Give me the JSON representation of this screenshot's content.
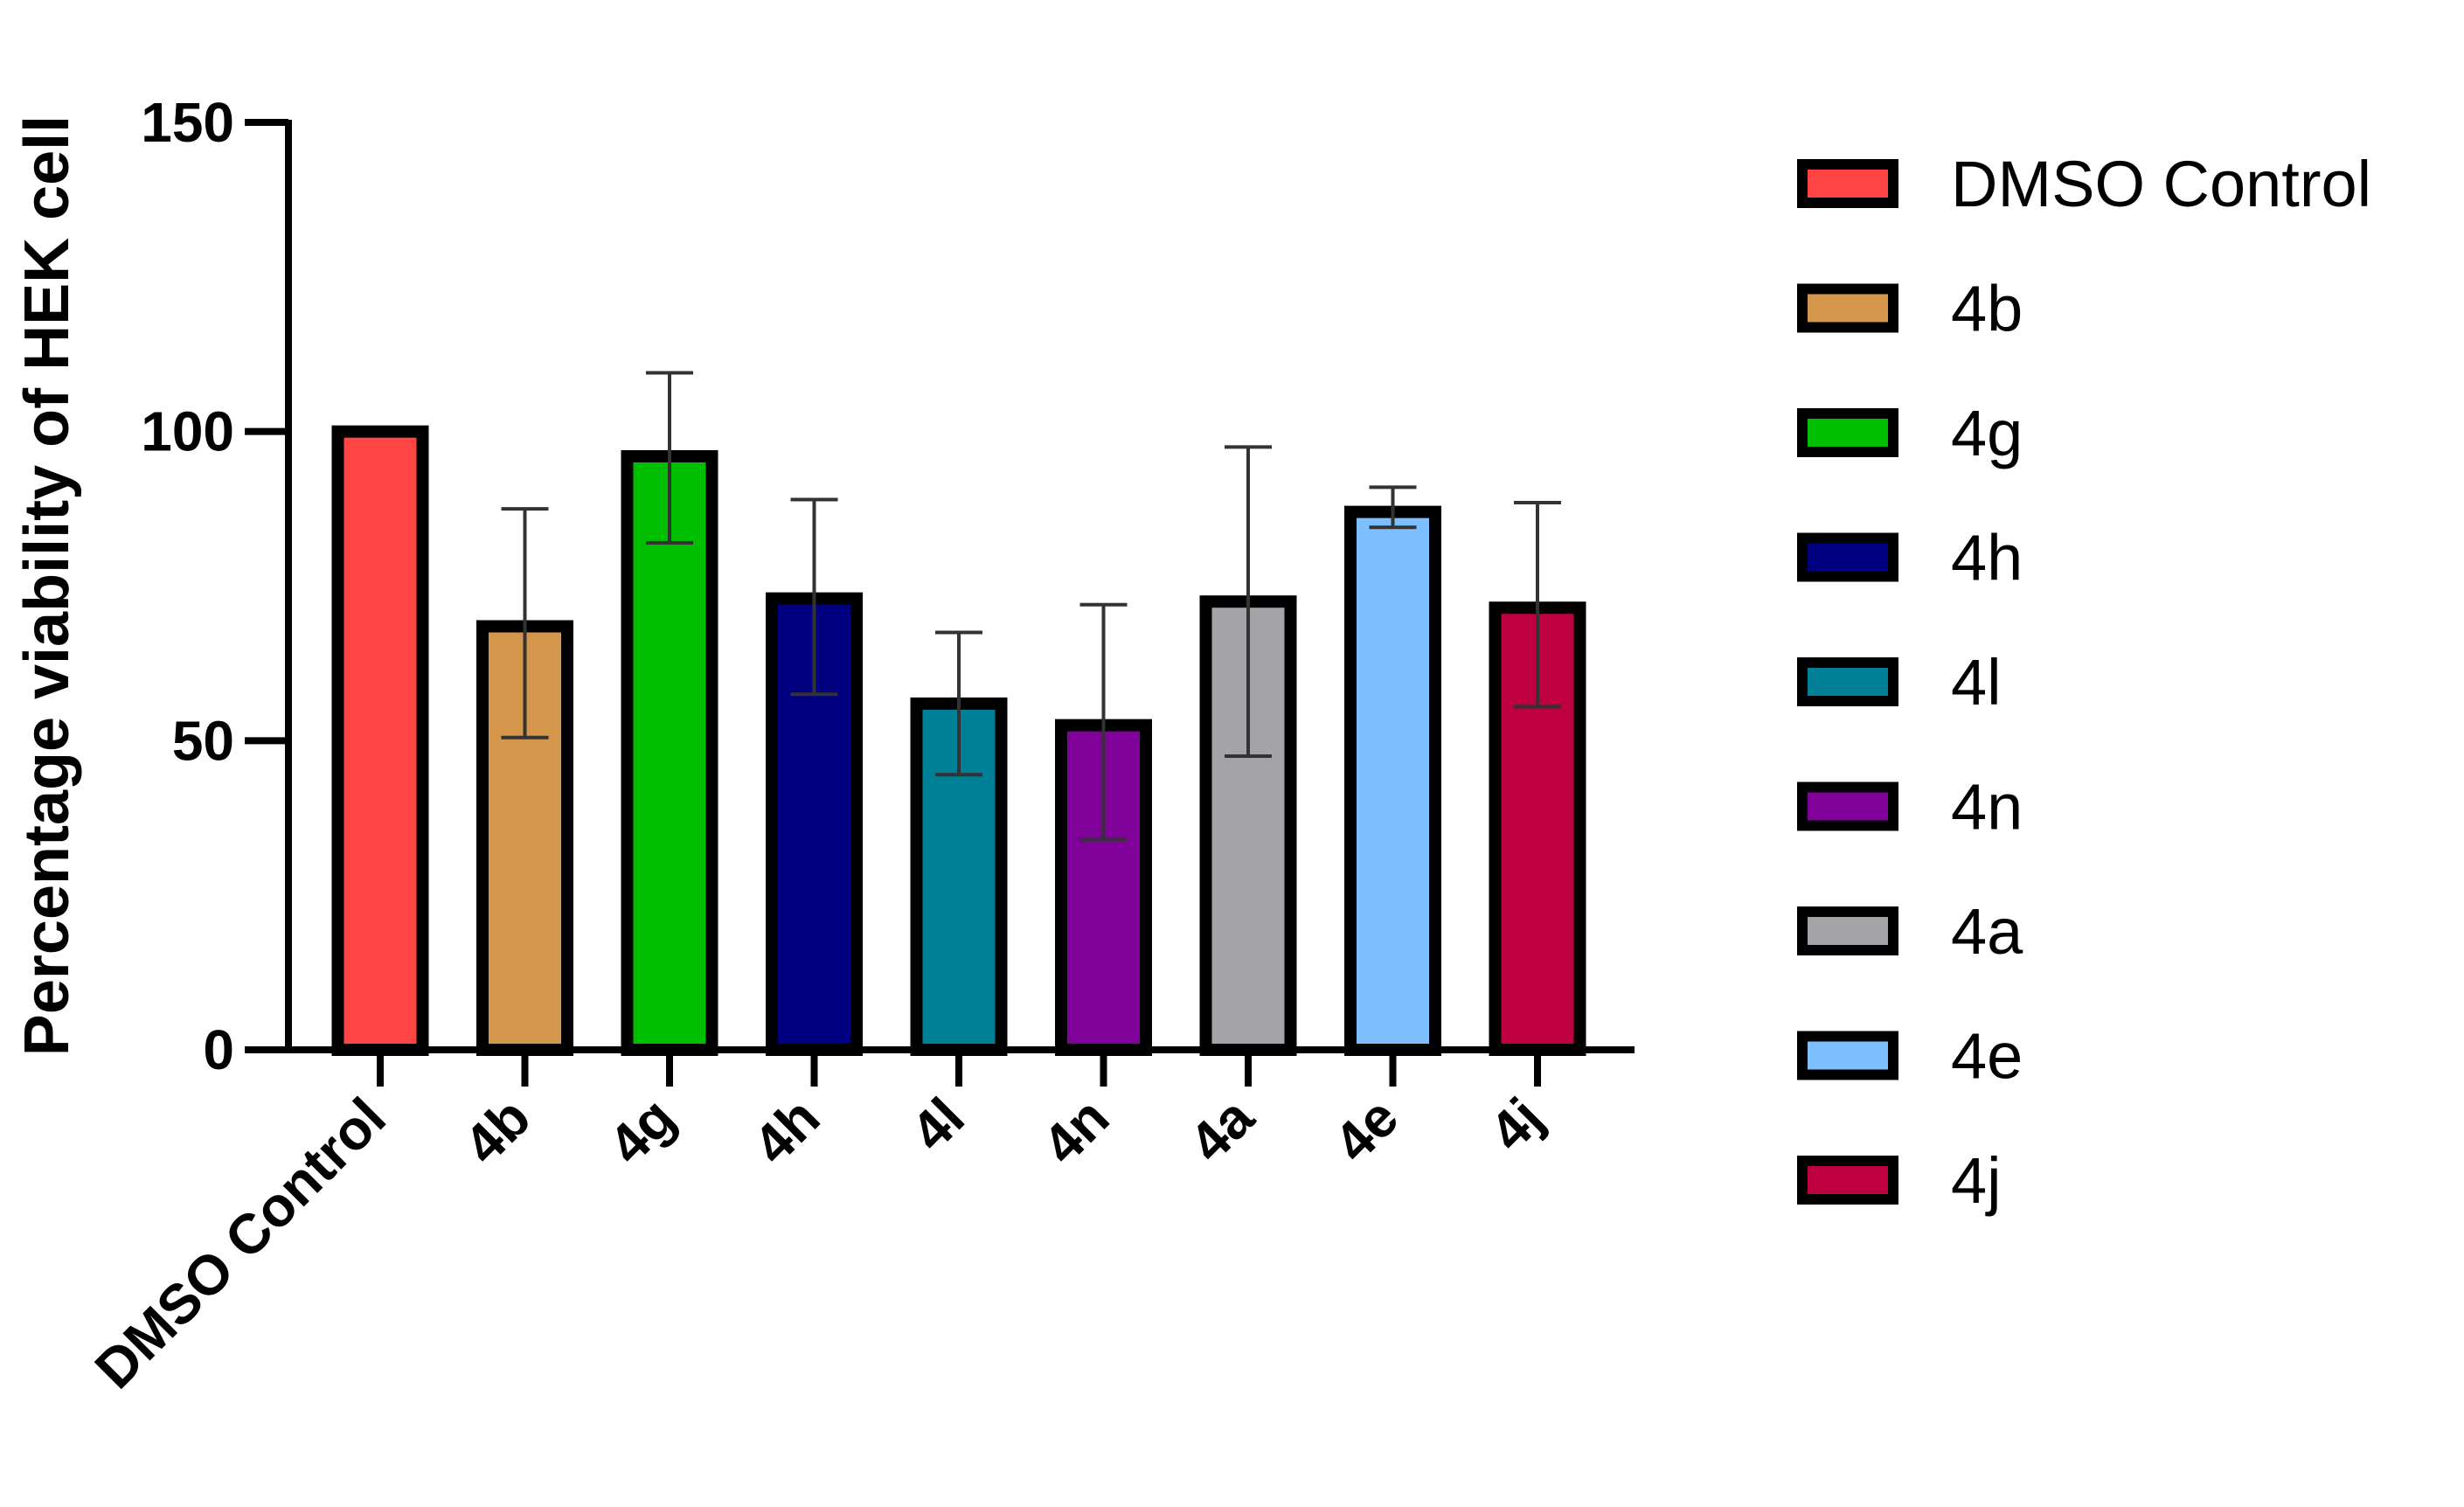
{
  "chart_data": {
    "type": "bar",
    "title": "",
    "xlabel": "",
    "ylabel": "Percentage viability of HEK cell",
    "ylim": [
      0,
      150
    ],
    "yticks": [
      0,
      50,
      100,
      150
    ],
    "grid": false,
    "legend_position": "right",
    "categories": [
      "DMSO Control",
      "4b",
      "4g",
      "4h",
      "4l",
      "4n",
      "4a",
      "4e",
      "4j"
    ],
    "values": [
      100,
      68.5,
      96,
      73,
      56,
      52.5,
      72.5,
      87,
      71.5
    ],
    "error_plus": [
      0,
      19,
      13.5,
      16,
      11.5,
      19.5,
      25,
      4,
      17
    ],
    "error_minus": [
      0,
      18,
      14,
      15.5,
      11.5,
      18.5,
      25,
      2.5,
      16
    ],
    "colors": [
      "#ff4444",
      "#d4964b",
      "#00bf00",
      "#000080",
      "#008096",
      "#80009a",
      "#a3a3a8",
      "#7ebfff",
      "#bf0040"
    ]
  }
}
